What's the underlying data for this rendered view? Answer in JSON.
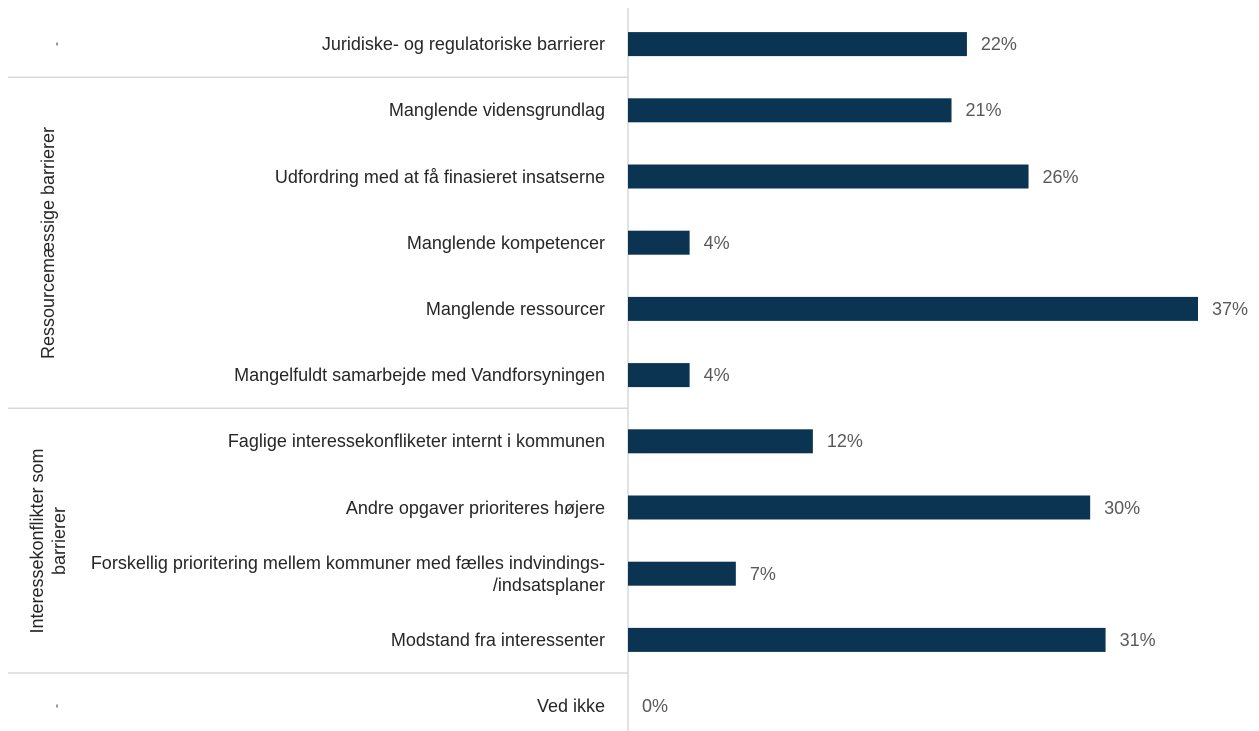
{
  "chart_data": {
    "type": "bar",
    "orientation": "horizontal",
    "categories": [
      "Juridiske- og regulatoriske barrierer",
      "Manglende vidensgrundlag",
      "Udfordring med at få finasieret insatserne",
      "Manglende kompetencer",
      "Manglende ressourcer",
      "Mangelfuldt samarbejde med Vandforsyningen",
      "Faglige interessekonfliketer internt i kommunen",
      "Andre opgaver prioriteres højere",
      "Forskellig prioritering mellem kommuner med fælles indvindings- /indsatsplaner",
      "Modstand fra interessenter",
      "Ved ikke"
    ],
    "values": [
      22,
      21,
      26,
      4,
      37,
      4,
      12,
      30,
      7,
      31,
      0
    ],
    "value_labels": [
      "22%",
      "21%",
      "26%",
      "4%",
      "37%",
      "4%",
      "12%",
      "30%",
      "7%",
      "31%",
      "0%"
    ],
    "groups": [
      {
        "name": "-",
        "size": 1
      },
      {
        "name": "Ressourcemæssige barrierer",
        "size": 5
      },
      {
        "name": "Interessekonflikter som barrierer",
        "size": 4
      },
      {
        "name": "-",
        "size": 1
      }
    ],
    "color": "#0b3352"
  }
}
